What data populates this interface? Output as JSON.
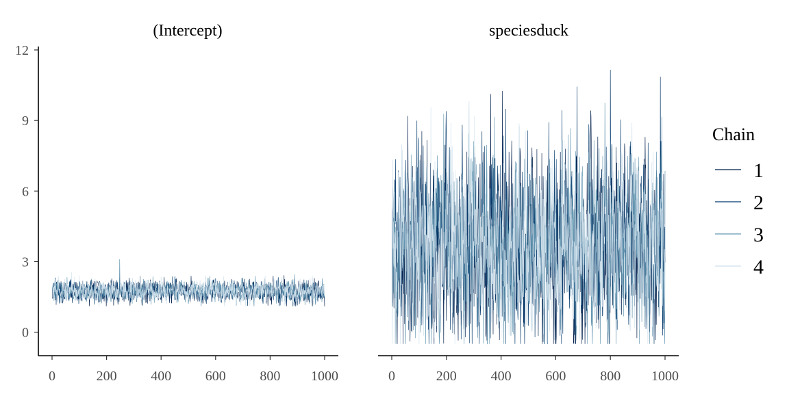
{
  "chart_data": {
    "type": "line",
    "legend": {
      "title": "Chain",
      "position": "right",
      "entries": [
        {
          "label": "1",
          "color": "#011f4b"
        },
        {
          "label": "2",
          "color": "#03396c"
        },
        {
          "label": "3",
          "color": "#6497b1"
        },
        {
          "label": "4",
          "color": "#d1e1ec"
        }
      ]
    },
    "panels": [
      {
        "title": "(Intercept)",
        "xlim": [
          0,
          1000
        ],
        "xticks": [
          0,
          200,
          400,
          600,
          800,
          1000
        ],
        "ylim": [
          -1,
          12
        ],
        "yticks": [
          0,
          3,
          6,
          9,
          12
        ],
        "show_y_axis": true,
        "iterations": 1000,
        "chain_summary": {
          "mean": 1.75,
          "sd": 0.25,
          "min": 1.1,
          "max": 3.1,
          "spike_at": 248
        }
      },
      {
        "title": "speciesduck",
        "xlim": [
          0,
          1000
        ],
        "xticks": [
          0,
          200,
          400,
          600,
          800,
          1000
        ],
        "ylim": [
          -1,
          12
        ],
        "yticks": [
          0,
          3,
          6,
          9,
          12
        ],
        "show_y_axis": false,
        "iterations": 1000,
        "chain_summary": {
          "mean": 3.6,
          "sd": 1.9,
          "min": -0.5,
          "max": 11.5
        }
      }
    ]
  }
}
